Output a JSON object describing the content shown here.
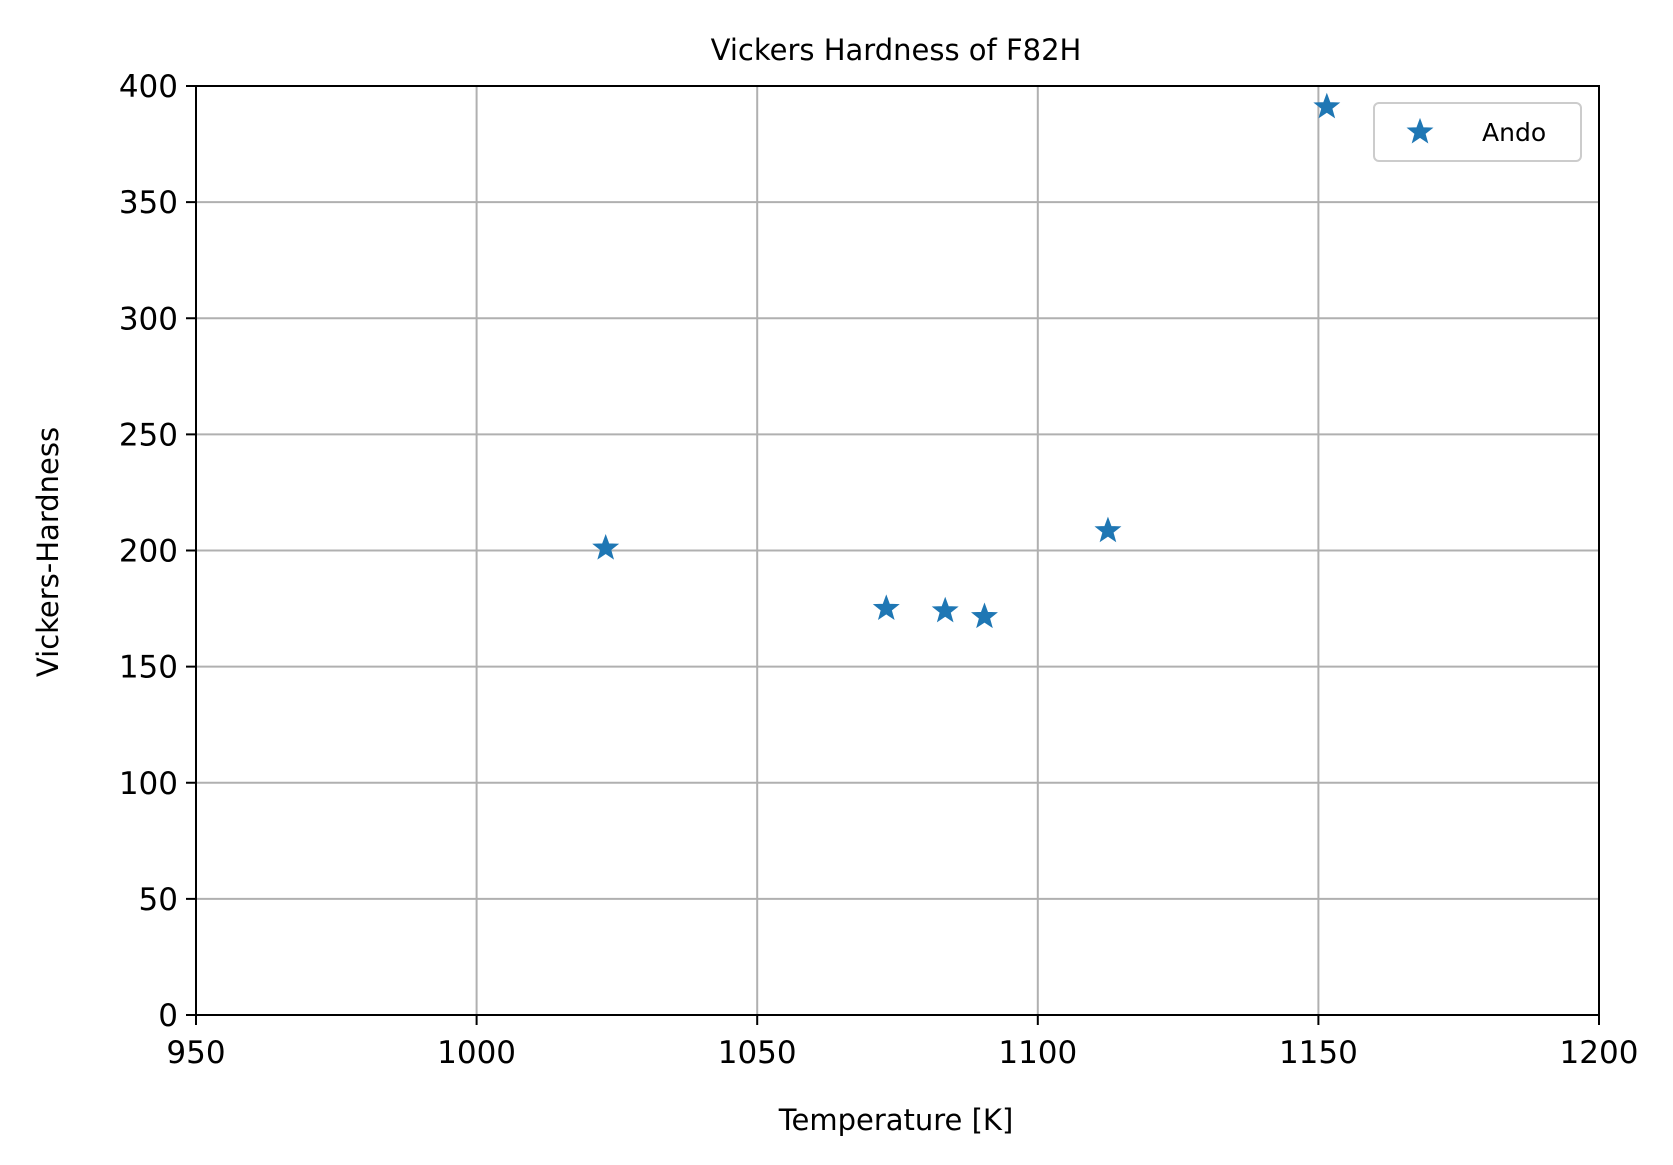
{
  "chart_data": {
    "type": "scatter",
    "title": "Vickers Hardness of F82H",
    "xlabel": "Temperature [K]",
    "ylabel": "Vickers-Hardness",
    "xlim": [
      950,
      1200
    ],
    "ylim": [
      0,
      400
    ],
    "xticks": [
      950,
      1000,
      1050,
      1100,
      1150,
      1200
    ],
    "yticks": [
      0,
      50,
      100,
      150,
      200,
      250,
      300,
      350,
      400
    ],
    "grid": true,
    "legend_position": "top-right",
    "series": [
      {
        "name": "Ando",
        "marker": "star",
        "color": "#1f77b4",
        "points": [
          {
            "x": 1023,
            "y": 201
          },
          {
            "x": 1073,
            "y": 175
          },
          {
            "x": 1083.5,
            "y": 174
          },
          {
            "x": 1090.5,
            "y": 171.5
          },
          {
            "x": 1112.5,
            "y": 208.5
          },
          {
            "x": 1151.5,
            "y": 391
          }
        ]
      }
    ]
  }
}
